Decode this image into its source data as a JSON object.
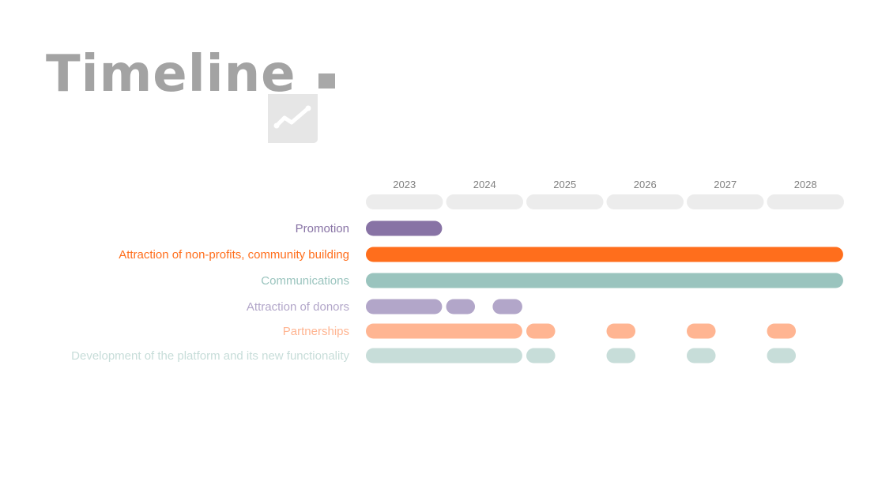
{
  "header": {
    "title": "Timeline",
    "icon": "trend-line-icon"
  },
  "chart_data": {
    "type": "timeline",
    "years": [
      "2023",
      "2024",
      "2025",
      "2026",
      "2027",
      "2028"
    ],
    "x_range": [
      2023,
      2029
    ],
    "rows": [
      {
        "label": "Promotion",
        "color": "#8873a5",
        "segments": [
          [
            2023.0,
            2023.95
          ]
        ]
      },
      {
        "label": "Attraction of non-profits, community building",
        "color": "#ff6e1c",
        "segments": [
          [
            2023.0,
            2028.95
          ]
        ]
      },
      {
        "label": "Communications",
        "color": "#9ac4be",
        "segments": [
          [
            2023.0,
            2028.95
          ]
        ]
      },
      {
        "label": "Attraction of donors",
        "color": "#b2a6c9",
        "segments": [
          [
            2023.0,
            2023.95
          ],
          [
            2024.0,
            2024.36
          ],
          [
            2024.58,
            2024.95
          ]
        ]
      },
      {
        "label": "Partnerships",
        "color": "#ffb592",
        "segments": [
          [
            2023.0,
            2024.95
          ],
          [
            2025.0,
            2025.36
          ],
          [
            2026.0,
            2026.36
          ],
          [
            2027.0,
            2027.36
          ],
          [
            2028.0,
            2028.36
          ]
        ]
      },
      {
        "label": "Development of the platform and its new functionality",
        "color": "#c7ddd9",
        "segments": [
          [
            2023.0,
            2024.95
          ],
          [
            2025.0,
            2025.36
          ],
          [
            2026.0,
            2026.36
          ],
          [
            2027.0,
            2027.36
          ],
          [
            2028.0,
            2028.36
          ]
        ]
      }
    ],
    "colors": {
      "year_pill": "#ececec",
      "year_label": "#808080",
      "title": "#a3a3a3"
    }
  }
}
